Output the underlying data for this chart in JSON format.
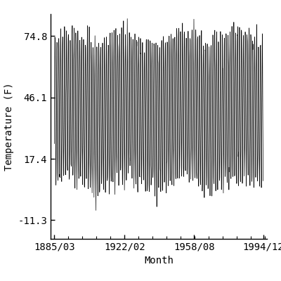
{
  "title": "",
  "xlabel": "Month",
  "ylabel": "Temperature (F)",
  "yticks": [
    -11.3,
    17.4,
    46.1,
    74.8
  ],
  "xtick_labels": [
    "1885/03",
    "1922/02",
    "1958/08",
    "1994/12"
  ],
  "ylim": [
    -20,
    85
  ],
  "start_year": 1885,
  "start_month": 3,
  "end_year": 1994,
  "end_month": 12,
  "mean_temp": 40.0,
  "amplitude": 34.0,
  "background_color": "#ffffff",
  "line_color": "#000000",
  "line_width": 0.5,
  "font_family": "monospace",
  "font_size": 10
}
